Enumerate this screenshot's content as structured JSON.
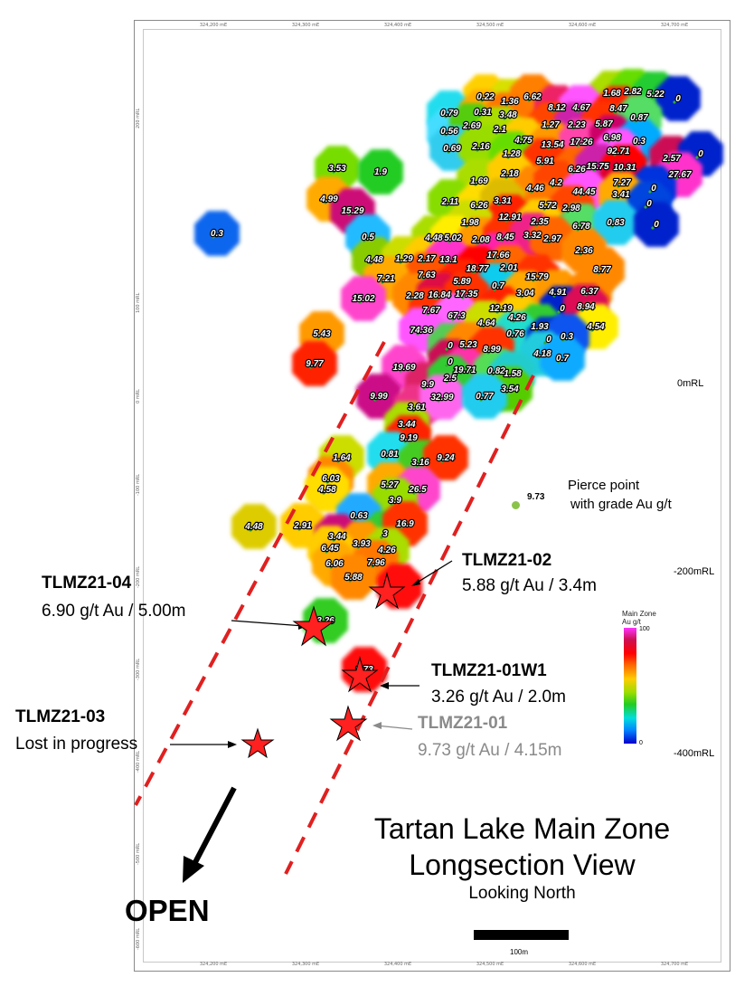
{
  "map": {
    "title_line1": "Tartan Lake Main Zone",
    "title_line2": "Longsection View",
    "subtitle": "Looking North",
    "open_label": "OPEN",
    "scale_label": "100m",
    "rl_labels": [
      "0mRL",
      "-200mRL",
      "-400mRL"
    ],
    "pierce_legend": {
      "value": "9.73",
      "text_line1": "Pierce point",
      "text_line2": "with grade Au g/t"
    },
    "legend": {
      "title_line1": "Main Zone",
      "title_line2": "Au g/t",
      "max": "100",
      "min": "0"
    },
    "eastings": [
      "324,200 mE",
      "324,300 mE",
      "324,400 mE",
      "324,500 mE",
      "324,600 mE",
      "324,700 mE"
    ],
    "northings": [
      "200 mRL",
      "100 mRL",
      "0 mRL",
      "-100 mRL",
      "-200 mRL",
      "-300 mRL",
      "-400 mRL",
      "-500 mRL",
      "-600 mRL"
    ],
    "colors": {
      "dash": "#e02020",
      "star": "#ff2020",
      "arrow": "#000000",
      "grey_text": "#8a8a8a"
    }
  },
  "drillholes": [
    {
      "id": "TLMZ21-04",
      "result": "6.90 g/t Au / 5.00m",
      "status": "highlight"
    },
    {
      "id": "TLMZ21-02",
      "result": "5.88 g/t Au / 3.4m",
      "status": "highlight"
    },
    {
      "id": "TLMZ21-01W1",
      "result": "3.26 g/t Au / 2.0m",
      "status": "highlight"
    },
    {
      "id": "TLMZ21-01",
      "result": "9.73 g/t Au / 4.15m",
      "status": "grey"
    },
    {
      "id": "TLMZ21-03",
      "result": "Lost in progress",
      "status": "lost"
    }
  ],
  "pierce_points": [
    {
      "v": "0.22",
      "c": "#ffd000"
    },
    {
      "v": "1.36",
      "c": "#d8e000"
    },
    {
      "v": "6.62",
      "c": "#ff8000"
    },
    {
      "v": "1.68",
      "c": "#aadd00"
    },
    {
      "v": "2.82",
      "c": "#66dd00"
    },
    {
      "v": "5.22",
      "c": "#22cc33"
    },
    {
      "v": "0",
      "c": "#0022cc"
    },
    {
      "v": "0.79",
      "c": "#22ddee"
    },
    {
      "v": "0.31",
      "c": "#ffaa00"
    },
    {
      "v": "3.48",
      "c": "#ff7700"
    },
    {
      "v": "8.12",
      "c": "#ee2266"
    },
    {
      "v": "4.67",
      "c": "#ff55ff"
    },
    {
      "v": "8.47",
      "c": "#ff2200"
    },
    {
      "v": "0.56",
      "c": "#44ddff"
    },
    {
      "v": "2.69",
      "c": "#55cc11"
    },
    {
      "v": "2.1",
      "c": "#aadd00"
    },
    {
      "v": "1.27",
      "c": "#ff4400"
    },
    {
      "v": "2.23",
      "c": "#cc22aa"
    },
    {
      "v": "5.87",
      "c": "#ff3300"
    },
    {
      "v": "0.87",
      "c": "#55dd66"
    },
    {
      "v": "0.69",
      "c": "#33ccee"
    },
    {
      "v": "2.16",
      "c": "#99dd00"
    },
    {
      "v": "4.75",
      "c": "#ffcc00"
    },
    {
      "v": "13.54",
      "c": "#ff9900"
    },
    {
      "v": "17.26",
      "c": "#ff44aa"
    },
    {
      "v": "6.98",
      "c": "#cc0066"
    },
    {
      "v": "0.3",
      "c": "#00aaff"
    },
    {
      "v": "1.28",
      "c": "#66dd00"
    },
    {
      "v": "5.91",
      "c": "#ff3300"
    },
    {
      "v": "92.71",
      "c": "#ff55ff"
    },
    {
      "v": "2.57",
      "c": "#cc1155"
    },
    {
      "v": "0",
      "c": "#0022cc"
    },
    {
      "v": "3.53",
      "c": "#77dd00"
    },
    {
      "v": "1.9",
      "c": "#22cc22"
    },
    {
      "v": "6.26",
      "c": "#ff6600"
    },
    {
      "v": "15.75",
      "c": "#cc22aa"
    },
    {
      "v": "10.31",
      "c": "#ff0000"
    },
    {
      "v": "27.67",
      "c": "#ff33cc"
    },
    {
      "v": "1.69",
      "c": "#aadd00"
    },
    {
      "v": "2.18",
      "c": "#ffcc00"
    },
    {
      "v": "4.46",
      "c": "#ff8800"
    },
    {
      "v": "4.2",
      "c": "#ff4400"
    },
    {
      "v": "7.27",
      "c": "#dd0033"
    },
    {
      "v": "4.99",
      "c": "#ffaa00"
    },
    {
      "v": "44.45",
      "c": "#ff55ff"
    },
    {
      "v": "0",
      "c": "#0033dd"
    },
    {
      "v": "15.29",
      "c": "#cc1177"
    },
    {
      "v": "2.11",
      "c": "#88dd00"
    },
    {
      "v": "6.26",
      "c": "#ffdd00"
    },
    {
      "v": "3.31",
      "c": "#ddbb00"
    },
    {
      "v": "5.72",
      "c": "#ff7700"
    },
    {
      "v": "2.98",
      "c": "#ff4400"
    },
    {
      "v": "3.41",
      "c": "#ffaa00"
    },
    {
      "v": "0",
      "c": "#0044dd"
    },
    {
      "v": "0.3",
      "c": "#1166ee"
    },
    {
      "v": "12.91",
      "c": "#ff2200"
    },
    {
      "v": "2.35",
      "c": "#ffcc00"
    },
    {
      "v": "6.78",
      "c": "#55dd66"
    },
    {
      "v": "0.83",
      "c": "#22ccee"
    },
    {
      "v": "1.98",
      "c": "#ccdd00"
    },
    {
      "v": "0.5",
      "c": "#22bbff"
    },
    {
      "v": "4.48",
      "c": "#aadd00"
    },
    {
      "v": "5.02",
      "c": "#ffee00"
    },
    {
      "v": "2.08",
      "c": "#ff9900"
    },
    {
      "v": "8.45",
      "c": "#ff3300"
    },
    {
      "v": "3.32",
      "c": "#ee2288"
    },
    {
      "v": "2.97",
      "c": "#ff6600"
    },
    {
      "v": "0",
      "c": "#0022cc"
    },
    {
      "v": "17.66",
      "c": "#ff22aa"
    },
    {
      "v": "2.36",
      "c": "#ff8800"
    },
    {
      "v": "4.48",
      "c": "#88cc00"
    },
    {
      "v": "1.29",
      "c": "#ccdd00"
    },
    {
      "v": "2.17",
      "c": "#ffcc00"
    },
    {
      "v": "13.1",
      "c": "#ff33cc"
    },
    {
      "v": "18.77",
      "c": "#ff0000"
    },
    {
      "v": "2.01",
      "c": "#ff6600"
    },
    {
      "v": "15.79",
      "c": "#ff3300"
    },
    {
      "v": "8.77",
      "c": "#ff8800"
    },
    {
      "v": "7.63",
      "c": "#ff5500"
    },
    {
      "v": "5.89",
      "c": "#ff2200"
    },
    {
      "v": "0.7",
      "c": "#11ccee"
    },
    {
      "v": "7.21",
      "c": "#ffaa00"
    },
    {
      "v": "2.28",
      "c": "#ff8800"
    },
    {
      "v": "16.84",
      "c": "#dd1144"
    },
    {
      "v": "17.35",
      "c": "#ff3300"
    },
    {
      "v": "3.04",
      "c": "#ffaa00"
    },
    {
      "v": "4.91",
      "c": "#ff9900"
    },
    {
      "v": "6.37",
      "c": "#ff8800"
    },
    {
      "v": "15.02",
      "c": "#ff44cc"
    },
    {
      "v": "12.19",
      "c": "#ff2200"
    },
    {
      "v": "0",
      "c": "#0022cc"
    },
    {
      "v": "8.94",
      "c": "#dd1155"
    },
    {
      "v": "7.67",
      "c": "#ff3300"
    },
    {
      "v": "67.3",
      "c": "#ff66ff"
    },
    {
      "v": "4.26",
      "c": "#ffcc00"
    },
    {
      "v": "4.64",
      "c": "#ccdd00"
    },
    {
      "v": "1.93",
      "c": "#33cc33"
    },
    {
      "v": "4.54",
      "c": "#ffee00"
    },
    {
      "v": "74.36",
      "c": "#ff55ff"
    },
    {
      "v": "0.76",
      "c": "#22ddcc"
    },
    {
      "v": "0",
      "c": "#0033cc"
    },
    {
      "v": "0.3",
      "c": "#1155ee"
    },
    {
      "v": "5.43",
      "c": "#ff9900"
    },
    {
      "v": "0",
      "c": "#55cc55"
    },
    {
      "v": "5.23",
      "c": "#ff8800"
    },
    {
      "v": "8.99",
      "c": "#ff3300"
    },
    {
      "v": "4.18",
      "c": "#22ccdd"
    },
    {
      "v": "0.7",
      "c": "#11aaff"
    },
    {
      "v": "9.77",
      "c": "#ff2200"
    },
    {
      "v": "0",
      "c": "#cc1155"
    },
    {
      "v": "19.71",
      "c": "#ff33aa"
    },
    {
      "v": "0.82",
      "c": "#55dd55"
    },
    {
      "v": "1.58",
      "c": "#22cccc"
    },
    {
      "v": "19.69",
      "c": "#ff44cc"
    },
    {
      "v": "9.9",
      "c": "#dd2266"
    },
    {
      "v": "2.5",
      "c": "#33cc33"
    },
    {
      "v": "3.54",
      "c": "#55cc00"
    },
    {
      "v": "9.99",
      "c": "#cc1188"
    },
    {
      "v": "3.61",
      "c": "#ee3388"
    },
    {
      "v": "32.99",
      "c": "#ff66ee"
    },
    {
      "v": "0.77",
      "c": "#22ccee"
    },
    {
      "v": "3.44",
      "c": "#aadd00"
    },
    {
      "v": "9.19",
      "c": "#ff2200"
    },
    {
      "v": "1.64",
      "c": "#ccdd00"
    },
    {
      "v": "0.81",
      "c": "#22ddee"
    },
    {
      "v": "3.16",
      "c": "#44cc22"
    },
    {
      "v": "9.24",
      "c": "#ff3300"
    },
    {
      "v": "6.03",
      "c": "#ff8800"
    },
    {
      "v": "4.58",
      "c": "#ffdd00"
    },
    {
      "v": "5.27",
      "c": "#ffaa00"
    },
    {
      "v": "26.5",
      "c": "#ff44cc"
    },
    {
      "v": "3.9",
      "c": "#99dd00"
    },
    {
      "v": "0.63",
      "c": "#22aaff"
    },
    {
      "v": "4.48",
      "c": "#ddcc00"
    },
    {
      "v": "2.91",
      "c": "#ffcc00"
    },
    {
      "v": "3.44",
      "c": "#cc1177"
    },
    {
      "v": "3",
      "c": "#33cc33"
    },
    {
      "v": "16.9",
      "c": "#ff3300"
    },
    {
      "v": "3.93",
      "c": "#ff9900"
    },
    {
      "v": "6.45",
      "c": "#ffcc00"
    },
    {
      "v": "4.26",
      "c": "#aadd00"
    },
    {
      "v": "6.06",
      "c": "#ffaa00"
    },
    {
      "v": "7.96",
      "c": "#ff7700"
    },
    {
      "v": "5.88",
      "c": "#ff8800"
    },
    {
      "v": "",
      "c": "#ff1111"
    },
    {
      "v": "3.26",
      "c": "#33cc22"
    },
    {
      "v": "9.73",
      "c": "#ff1111"
    }
  ]
}
